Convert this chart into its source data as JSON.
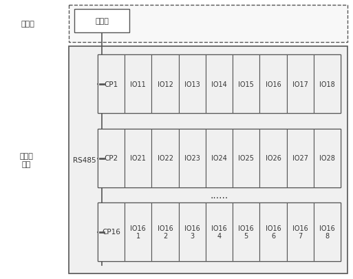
{
  "bg_color": "#ffffff",
  "box_facecolor": "#f0f0f0",
  "cell_facecolor": "#f0f0f0",
  "border_color": "#555555",
  "text_color": "#333333",
  "control_layer_label": "控制层",
  "io_layer_label": "输入输\n出层",
  "rs485_label": "RS485",
  "controller_label": "控制器",
  "rows": [
    {
      "cp_label": "CP1",
      "io_labels": [
        "IO11",
        "IO12",
        "IO13",
        "IO14",
        "IO15",
        "IO16",
        "IO17",
        "IO18"
      ]
    },
    {
      "cp_label": "CP2",
      "io_labels": [
        "IO21",
        "IO22",
        "IO23",
        "IO24",
        "IO25",
        "IO26",
        "IO27",
        "IO28"
      ]
    },
    {
      "cp_label": "CP16",
      "io_labels": [
        "IO16\n1",
        "IO16\n2",
        "IO16\n3",
        "IO16\n4",
        "IO16\n5",
        "IO16\n6",
        "IO16\n7",
        "IO16\n8"
      ]
    }
  ],
  "dots_label": "......",
  "figsize": [
    5.13,
    4.06
  ],
  "dpi": 100
}
